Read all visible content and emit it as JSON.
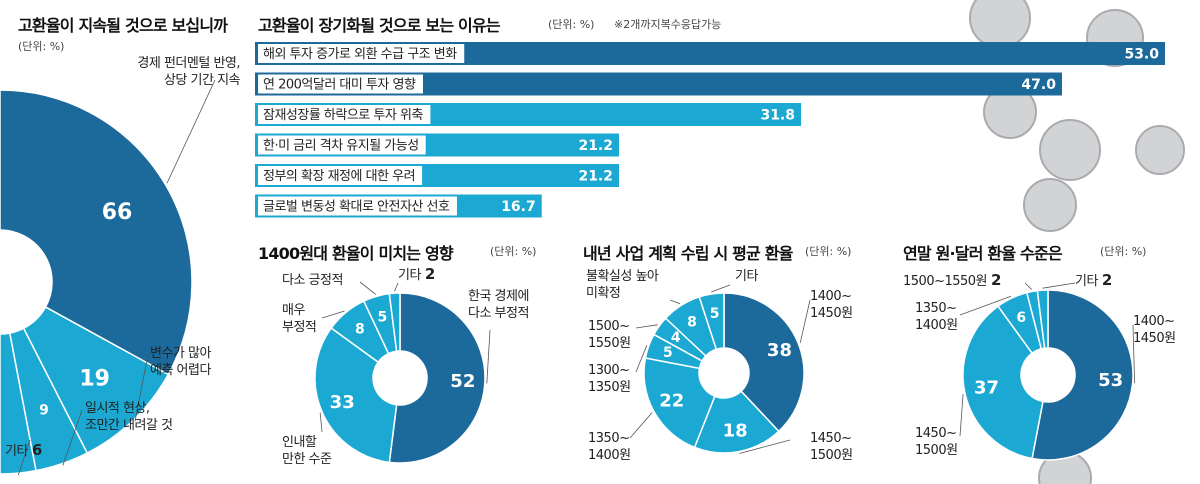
{
  "chart_data": [
    {
      "type": "half-donut",
      "title": "고환율이 지속될 것으로 보십니까",
      "unit": "(단위: %)",
      "categories": [
        "경제 펀더멘털 반영,\n상당 기간 지속",
        "변수가 많아\n예측 어렵다",
        "일시적 현상,\n조만간 내려갈 것",
        "기타"
      ],
      "values": [
        66,
        19,
        9,
        6
      ],
      "colors": [
        "#1c6a9b",
        "#1ba9d3",
        "#1ba9d3",
        "#1ba9d3"
      ]
    },
    {
      "type": "hbar",
      "title": "고환율이 장기화될 것으로 보는 이유는",
      "unit": "(단위: %)",
      "note": "※2개까지복수응답가능",
      "categories": [
        "해외 투자 증가로 외환 수급 구조 변화",
        "연 200억달러 대미 투자 영향",
        "잠재성장률 하락으로 투자 위축",
        "한·미 금리 격차 유지될 가능성",
        "정부의 확장 재정에 대한 우려",
        "글로벌 변동성 확대로 안전자산 선호"
      ],
      "values": [
        53.0,
        47.0,
        31.8,
        21.2,
        21.2,
        16.7
      ],
      "value_labels": [
        "53.0",
        "47.0",
        "31.8",
        "21.2",
        "21.2",
        "16.7"
      ],
      "colors": [
        "#1c6a9b",
        "#1c6a9b",
        "#1ba9d3",
        "#1ba9d3",
        "#1ba9d3",
        "#1ba9d3"
      ]
    },
    {
      "type": "donut",
      "title": "1400원대 환율이 미치는 영향",
      "unit": "(단위: %)",
      "categories": [
        "한국 경제에\n다소 부정적",
        "인내할\n만한 수준",
        "매우\n부정적",
        "다소 긍정적",
        "기타"
      ],
      "values": [
        52,
        33,
        8,
        5,
        2
      ],
      "colors": [
        "#1c6a9b",
        "#1ba9d3",
        "#1ba9d3",
        "#1ba9d3",
        "#1ba9d3"
      ]
    },
    {
      "type": "donut",
      "title": "내년 사업 계획 수립 시 평균 환율",
      "unit": "(단위: %)",
      "categories": [
        "1400~\n1450원",
        "1450~\n1500원",
        "1350~\n1400원",
        "1300~\n1350원",
        "1500~\n1550원",
        "불확실성 높아\n미확정",
        "기타"
      ],
      "values": [
        38,
        18,
        22,
        5,
        4,
        8,
        5
      ],
      "colors": [
        "#1c6a9b",
        "#1ba9d3",
        "#1ba9d3",
        "#1ba9d3",
        "#1ba9d3",
        "#1ba9d3",
        "#1ba9d3"
      ]
    },
    {
      "type": "donut",
      "title": "연말 원·달러 환율 수준은",
      "unit": "(단위: %)",
      "categories": [
        "1400~\n1450원",
        "1450~\n1500원",
        "1350~\n1400원",
        "1500~1550원",
        "기타"
      ],
      "values": [
        53,
        37,
        6,
        2,
        2
      ],
      "colors": [
        "#1c6a9b",
        "#1ba9d3",
        "#1ba9d3",
        "#1ba9d3",
        "#1ba9d3"
      ]
    }
  ]
}
